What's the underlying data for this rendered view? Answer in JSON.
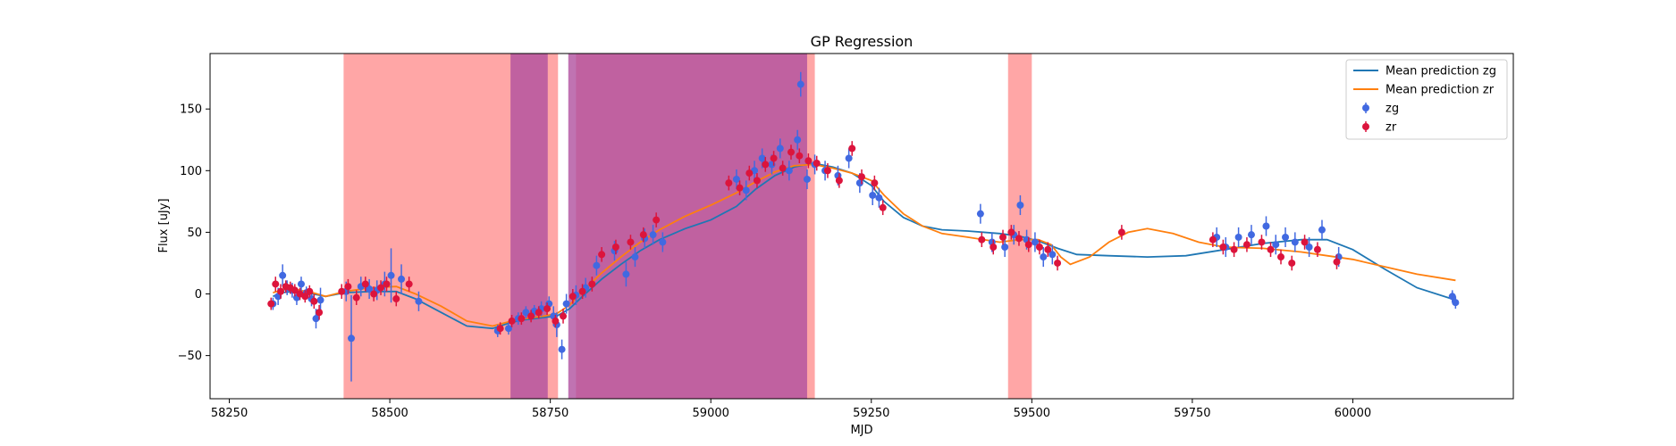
{
  "chart_data": {
    "type": "scatter",
    "title": "GP Regression",
    "xlabel": "MJD",
    "ylabel": "Flux [uJy]",
    "xlim": [
      58220,
      60250
    ],
    "ylim": [
      -85,
      195
    ],
    "xticks": [
      58250,
      58500,
      58750,
      59000,
      59250,
      59500,
      59750,
      60000
    ],
    "yticks": [
      -50,
      0,
      50,
      100,
      150
    ],
    "grid": false,
    "legend_position": "upper right",
    "shaded_regions": [
      {
        "band": "zr",
        "x0": 58428,
        "x1": 58762,
        "color": "#ff8080"
      },
      {
        "band": "zr",
        "x0": 58790,
        "x1": 59162,
        "color": "#ff8080"
      },
      {
        "band": "zr",
        "x0": 59463,
        "x1": 59500,
        "color": "#ff8080"
      },
      {
        "band": "zg",
        "x0": 58688,
        "x1": 58746,
        "color": "#b0509f"
      },
      {
        "band": "zg",
        "x0": 58778,
        "x1": 59150,
        "color": "#b0509f"
      }
    ],
    "series": [
      {
        "name": "Mean prediction zg",
        "kind": "line",
        "color": "#1f77b4",
        "x": [
          58318,
          58330,
          58350,
          58380,
          58400,
          58430,
          58470,
          58510,
          58540,
          58580,
          58620,
          58660,
          58690,
          58710,
          58740,
          58760,
          58780,
          58800,
          58830,
          58860,
          58890,
          58920,
          58960,
          59000,
          59040,
          59070,
          59100,
          59130,
          59160,
          59190,
          59220,
          59250,
          59270,
          59300,
          59330,
          59360,
          59400,
          59450,
          59480,
          59510,
          59540,
          59570,
          59620,
          59680,
          59740,
          59800,
          59860,
          59920,
          59960,
          60000,
          60050,
          60100,
          60160
        ],
        "y": [
          -2,
          1,
          2,
          0,
          -2,
          1,
          2,
          2,
          -4,
          -15,
          -26,
          -28,
          -23,
          -21,
          -19,
          -18,
          -12,
          -2,
          12,
          24,
          35,
          44,
          53,
          60,
          71,
          85,
          96,
          103,
          106,
          103,
          98,
          88,
          75,
          62,
          55,
          52,
          51,
          49,
          47,
          43,
          37,
          32,
          31,
          30,
          31,
          36,
          41,
          44,
          44,
          36,
          20,
          5,
          -5
        ]
      },
      {
        "name": "Mean prediction zr",
        "kind": "line",
        "color": "#ff7f0e",
        "x": [
          58318,
          58330,
          58350,
          58380,
          58400,
          58430,
          58470,
          58510,
          58540,
          58580,
          58620,
          58660,
          58690,
          58710,
          58740,
          58760,
          58780,
          58800,
          58830,
          58860,
          58890,
          58920,
          58960,
          59000,
          59040,
          59070,
          59100,
          59130,
          59160,
          59190,
          59220,
          59250,
          59270,
          59300,
          59330,
          59360,
          59400,
          59450,
          59480,
          59510,
          59530,
          59545,
          59560,
          59590,
          59620,
          59650,
          59680,
          59720,
          59760,
          59800,
          59860,
          59920,
          59960,
          60000,
          60050,
          60100,
          60160
        ],
        "y": [
          1,
          3,
          4,
          1,
          -2,
          2,
          5,
          6,
          0,
          -10,
          -22,
          -26,
          -22,
          -20,
          -18,
          -16,
          -9,
          2,
          17,
          30,
          42,
          52,
          63,
          72,
          82,
          91,
          99,
          104,
          105,
          102,
          98,
          92,
          80,
          65,
          55,
          49,
          46,
          42,
          44,
          44,
          40,
          30,
          24,
          30,
          42,
          50,
          53,
          49,
          42,
          38,
          37,
          34,
          31,
          28,
          22,
          16,
          11
        ]
      },
      {
        "name": "zg",
        "kind": "errorbar",
        "color": "#4169e1",
        "x": [
          58318,
          58326,
          58333,
          58340,
          58348,
          58355,
          58362,
          58370,
          58378,
          58385,
          58392,
          58432,
          58440,
          58455,
          58468,
          58480,
          58492,
          58502,
          58518,
          58545,
          58668,
          58685,
          58700,
          58712,
          58725,
          58736,
          58748,
          58755,
          58760,
          58768,
          58775,
          58790,
          58805,
          58822,
          58850,
          58868,
          58882,
          58897,
          58910,
          58925,
          59040,
          59055,
          59068,
          59080,
          59095,
          59108,
          59122,
          59135,
          59140,
          59150,
          59162,
          59178,
          59198,
          59215,
          59232,
          59252,
          59262,
          59420,
          59438,
          59458,
          59472,
          59482,
          59492,
          59505,
          59518,
          59532,
          59788,
          59802,
          59822,
          59842,
          59865,
          59880,
          59895,
          59910,
          59932,
          59952,
          59978,
          60155,
          60160
        ],
        "y": [
          -8,
          -2,
          15,
          5,
          3,
          -3,
          8,
          1,
          -4,
          -20,
          -5,
          2,
          -36,
          6,
          4,
          3,
          8,
          15,
          12,
          -6,
          -30,
          -28,
          -20,
          -15,
          -14,
          -12,
          -8,
          -18,
          -25,
          -45,
          -8,
          -1,
          5,
          23,
          35,
          16,
          30,
          45,
          48,
          42,
          93,
          84,
          100,
          110,
          105,
          118,
          100,
          125,
          170,
          93,
          105,
          100,
          96,
          110,
          90,
          80,
          78,
          65,
          42,
          38,
          48,
          72,
          44,
          42,
          30,
          32,
          46,
          38,
          46,
          48,
          55,
          40,
          46,
          42,
          38,
          52,
          30,
          -2,
          -7
        ],
        "yerr": [
          5,
          7,
          9,
          6,
          6,
          6,
          6,
          5,
          6,
          8,
          10,
          8,
          35,
          8,
          8,
          8,
          10,
          22,
          12,
          8,
          5,
          5,
          5,
          5,
          5,
          6,
          6,
          8,
          10,
          8,
          8,
          8,
          8,
          8,
          8,
          10,
          8,
          8,
          8,
          8,
          8,
          8,
          8,
          8,
          8,
          8,
          8,
          8,
          10,
          8,
          8,
          8,
          8,
          8,
          8,
          8,
          8,
          8,
          8,
          8,
          8,
          8,
          8,
          8,
          8,
          8,
          8,
          8,
          8,
          8,
          8,
          8,
          8,
          8,
          8,
          8,
          8,
          5,
          5
        ]
      },
      {
        "name": "zr",
        "kind": "errorbar",
        "color": "#dc143c",
        "x": [
          58315,
          58322,
          58330,
          58338,
          58345,
          58352,
          58360,
          58368,
          58375,
          58382,
          58390,
          58425,
          58435,
          58448,
          58462,
          58475,
          58486,
          58495,
          58510,
          58530,
          58672,
          58690,
          58705,
          58720,
          58732,
          58745,
          58758,
          58770,
          58785,
          58800,
          58815,
          58830,
          58852,
          58875,
          58895,
          58915,
          59028,
          59045,
          59060,
          59072,
          59085,
          59098,
          59112,
          59125,
          59138,
          59152,
          59165,
          59182,
          59200,
          59220,
          59235,
          59255,
          59268,
          59422,
          59440,
          59455,
          59468,
          59480,
          59495,
          59512,
          59525,
          59540,
          59640,
          59782,
          59798,
          59815,
          59835,
          59858,
          59872,
          59888,
          59905,
          59925,
          59945,
          59975
        ],
        "y": [
          -8,
          8,
          2,
          6,
          5,
          3,
          0,
          -2,
          2,
          -6,
          -15,
          2,
          6,
          -3,
          8,
          0,
          5,
          8,
          -4,
          8,
          -28,
          -22,
          -20,
          -18,
          -15,
          -12,
          -22,
          -18,
          -2,
          2,
          8,
          32,
          38,
          42,
          48,
          60,
          90,
          86,
          98,
          92,
          105,
          110,
          102,
          115,
          112,
          108,
          106,
          100,
          92,
          118,
          95,
          90,
          70,
          44,
          38,
          46,
          50,
          45,
          40,
          38,
          36,
          25,
          50,
          44,
          38,
          36,
          40,
          42,
          36,
          30,
          25,
          42,
          36,
          26
        ],
        "yerr": [
          5,
          6,
          6,
          5,
          5,
          5,
          5,
          5,
          5,
          6,
          6,
          6,
          6,
          6,
          6,
          6,
          6,
          6,
          6,
          6,
          5,
          5,
          5,
          5,
          5,
          5,
          5,
          6,
          6,
          6,
          6,
          6,
          6,
          6,
          6,
          6,
          6,
          6,
          6,
          6,
          6,
          6,
          6,
          6,
          6,
          6,
          6,
          6,
          6,
          6,
          6,
          6,
          6,
          6,
          6,
          6,
          6,
          6,
          6,
          6,
          6,
          6,
          6,
          6,
          6,
          6,
          6,
          6,
          6,
          6,
          6,
          6,
          6,
          6
        ]
      }
    ]
  }
}
